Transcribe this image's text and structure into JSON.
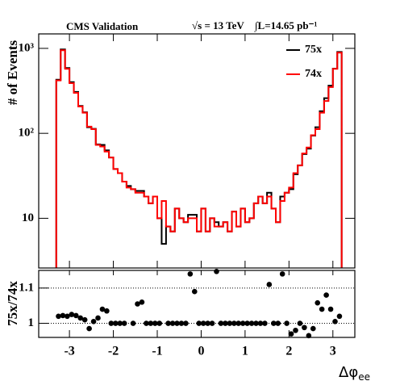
{
  "chart_data": [
    {
      "type": "histogram",
      "title": "CMS Validation",
      "annotations": [
        "√s = 13 TeV",
        "∫L=14.65 pb⁻¹"
      ],
      "y_label": "# of Events",
      "log_y": true,
      "legend": "upper right",
      "xlim": [
        -3.7,
        3.5
      ],
      "xticks": [
        -3,
        -2,
        -1,
        0,
        1,
        2,
        3
      ],
      "ylim": [
        2.6,
        1480
      ],
      "yticks": [
        {
          "value": 10,
          "label": "10"
        },
        {
          "value": 100,
          "label": "10²"
        },
        {
          "value": 1000,
          "label": "10³"
        }
      ],
      "bins": [
        -3.3,
        -3.2,
        -3.1,
        -3,
        -2.9,
        -2.8,
        -2.7,
        -2.6,
        -2.5,
        -2.4,
        -2.3,
        -2.2,
        -2.1,
        -2,
        -1.9,
        -1.8,
        -1.7,
        -1.6,
        -1.5,
        -1.4,
        -1.3,
        -1.2,
        -1.1,
        -1,
        -0.9,
        -0.8,
        -0.7,
        -0.6,
        -0.5,
        -0.4,
        -0.3,
        -0.2,
        -0.1,
        0,
        0.1,
        0.2,
        0.3,
        0.4,
        0.5,
        0.6,
        0.7,
        0.8,
        0.9,
        1,
        1.1,
        1.2,
        1.3,
        1.4,
        1.5,
        1.6,
        1.7,
        1.8,
        1.9,
        2,
        2.1,
        2.2,
        2.3,
        2.4,
        2.5,
        2.6,
        2.7,
        2.8,
        2.9,
        3,
        3.1,
        3.2
      ],
      "series": [
        {
          "name": "75x",
          "color": "#000000",
          "values": [
            428,
            971,
            587,
            400,
            307,
            210,
            177,
            118,
            113,
            74,
            73,
            63,
            52,
            38,
            34,
            27,
            24,
            22,
            21,
            21,
            18,
            15,
            18,
            10,
            5,
            8,
            7,
            13,
            10,
            9,
            11,
            11,
            7,
            13,
            7,
            10,
            9,
            8,
            9,
            7,
            12,
            8,
            13,
            9,
            10,
            15,
            18,
            15,
            20,
            13,
            9,
            18,
            20,
            22,
            33,
            42,
            57,
            66,
            94,
            118,
            182,
            259,
            364,
            578,
            908
          ]
        },
        {
          "name": "74x",
          "color": "#ff0000",
          "values": [
            420,
            950,
            575,
            390,
            300,
            207,
            175,
            120,
            112,
            73,
            70,
            61,
            52,
            38,
            34,
            27,
            23,
            22,
            20,
            20,
            18,
            15,
            18,
            10,
            16,
            8,
            7,
            13,
            10,
            9,
            10,
            10,
            7,
            13,
            7,
            10,
            8,
            8,
            9,
            7,
            12,
            8,
            13,
            9,
            10,
            15,
            18,
            15,
            18,
            13,
            9,
            16,
            20,
            23,
            34,
            42,
            58,
            68,
            95,
            112,
            175,
            240,
            350,
            575,
            890
          ]
        }
      ]
    },
    {
      "type": "scatter",
      "y_label": "75x/74x",
      "x_label": "Δφ",
      "x_label_sub": "ee",
      "xlim": [
        -3.7,
        3.5
      ],
      "xticks": [
        -3,
        -2,
        -1,
        0,
        1,
        2,
        3
      ],
      "ylim": [
        0.96,
        1.15
      ],
      "yticks": [
        1,
        1.1
      ],
      "grid": true,
      "color": "#000000",
      "x": [
        -3.25,
        -3.15,
        -3.05,
        -2.95,
        -2.85,
        -2.75,
        -2.65,
        -2.55,
        -2.45,
        -2.35,
        -2.25,
        -2.15,
        -2.05,
        -1.95,
        -1.85,
        -1.75,
        -1.65,
        -1.55,
        -1.45,
        -1.35,
        -1.25,
        -1.15,
        -1.05,
        -0.95,
        -0.85,
        -0.75,
        -0.65,
        -0.55,
        -0.45,
        -0.35,
        -0.25,
        -0.15,
        -0.05,
        0.05,
        0.15,
        0.25,
        0.35,
        0.45,
        0.55,
        0.65,
        0.75,
        0.85,
        0.95,
        1.05,
        1.15,
        1.25,
        1.35,
        1.45,
        1.55,
        1.65,
        1.75,
        1.85,
        1.95,
        2.05,
        2.15,
        2.25,
        2.35,
        2.45,
        2.55,
        2.65,
        2.75,
        2.85,
        2.95,
        3.05,
        3.15
      ],
      "values": [
        1.02,
        1.022,
        1.02,
        1.025,
        1.022,
        1.015,
        1.01,
        0.985,
        1.005,
        1.015,
        1.04,
        1.035,
        1.0,
        1.0,
        1.0,
        1.0,
        null,
        1.0,
        1.055,
        1.06,
        1.0,
        1.0,
        1.0,
        1.0,
        null,
        1.0,
        1.0,
        1.0,
        1.0,
        1.0,
        1.14,
        1.09,
        1.0,
        1.0,
        1.0,
        1.0,
        1.147,
        1.0,
        1.0,
        1.0,
        1.0,
        1.0,
        1.0,
        1.0,
        1.0,
        1.0,
        1.0,
        1.0,
        1.11,
        1.0,
        1.0,
        1.14,
        1.0,
        0.97,
        0.98,
        1.0,
        0.988,
        0.965,
        0.985,
        1.058,
        1.04,
        1.08,
        1.04,
        1.005,
        1.02
      ]
    }
  ]
}
